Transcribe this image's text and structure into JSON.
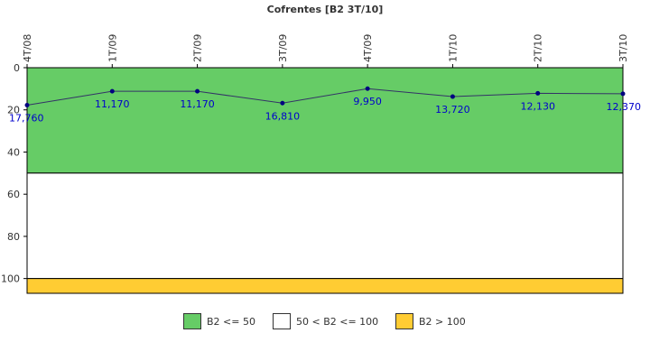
{
  "chart_data": {
    "type": "line",
    "title": "Cofrentes [B2 3T/10]",
    "categories": [
      "4T/08",
      "1T/09",
      "2T/09",
      "3T/09",
      "4T/09",
      "1T/10",
      "2T/10",
      "3T/10"
    ],
    "values": [
      17.76,
      11.17,
      11.17,
      16.81,
      9.95,
      13.72,
      12.13,
      12.37
    ],
    "data_labels": [
      "17,760",
      "11,170",
      "11,170",
      "16,810",
      "9,950",
      "13,720",
      "12,130",
      "12,370"
    ],
    "ylim": [
      0,
      107
    ],
    "y_inverted": true,
    "y_ticks": [
      "0",
      "20",
      "40",
      "60",
      "80",
      "100"
    ],
    "y_tick_values": [
      0,
      20,
      40,
      60,
      80,
      100
    ],
    "bands": [
      {
        "from": 0,
        "to": 50,
        "color": "#66cc66",
        "label": "B2 <= 50"
      },
      {
        "from": 50,
        "to": 100,
        "color": "#ffffff",
        "label": "50 < B2 <= 100"
      },
      {
        "from": 100,
        "to": 107,
        "color": "#ffcc33",
        "label": "B2 > 100"
      }
    ],
    "series_color": "#000080",
    "label_color": "#0000cc",
    "legend_position": "bottom"
  }
}
